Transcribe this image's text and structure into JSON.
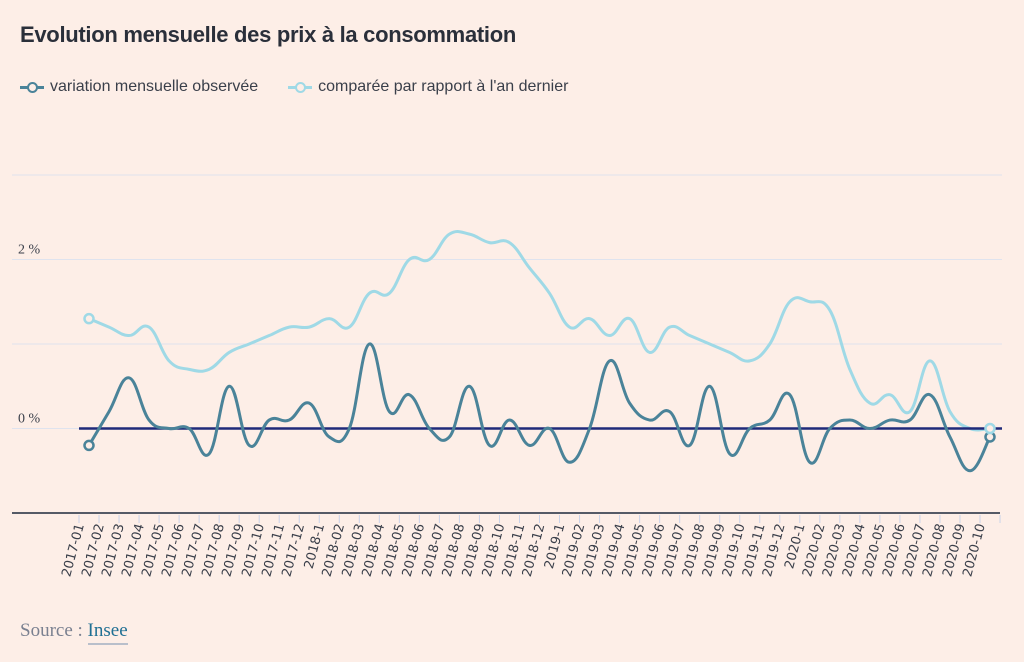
{
  "title": "Evolution mensuelle des prix à la consommation",
  "legend": [
    {
      "label": "variation mensuelle observée",
      "color": "#4a8399"
    },
    {
      "label": "comparée par rapport à l'an dernier",
      "color": "#9fd9e6"
    }
  ],
  "source": {
    "label": "Source :",
    "link": "Insee"
  },
  "colors": {
    "background": "#fdeee7",
    "zero_line": "#1f2a7a",
    "grid": "#dfe3ee",
    "axis": "#555a66",
    "tick": "#c9d3ea"
  },
  "chart_data": {
    "type": "line",
    "title": "Evolution mensuelle des prix à la consommation",
    "xlabel": "",
    "ylabel": "",
    "ylim": [
      -1,
      3
    ],
    "yticks": [
      {
        "value": 2,
        "label": "2 %"
      },
      {
        "value": 0,
        "label": "0 %"
      }
    ],
    "grid": true,
    "legend_position": "top-left",
    "x": [
      "2017-01",
      "2017-02",
      "2017-03",
      "2017-04",
      "2017-05",
      "2017-06",
      "2017-07",
      "2017-08",
      "2017-09",
      "2017-10",
      "2017-11",
      "2017-12",
      "2018-1",
      "2018-02",
      "2018-03",
      "2018-04",
      "2018-05",
      "2018-06",
      "2018-07",
      "2018-08",
      "2018-09",
      "2018-10",
      "2018-11",
      "2018-12",
      "2019-1",
      "2019-02",
      "2019-03",
      "2019-04",
      "2019-05",
      "2019-06",
      "2019-07",
      "2019-08",
      "2019-09",
      "2019-10",
      "2019-11",
      "2019-12",
      "2020-1",
      "2020-02",
      "2020-03",
      "2020-04",
      "2020-05",
      "2020-06",
      "2020-07",
      "2020-08",
      "2020-09",
      "2020-10"
    ],
    "series": [
      {
        "name": "variation mensuelle observée",
        "color": "#4a8399",
        "values": [
          -0.2,
          0.2,
          0.6,
          0.1,
          0.0,
          0.0,
          -0.3,
          0.5,
          -0.2,
          0.1,
          0.1,
          0.3,
          -0.1,
          0.0,
          1.0,
          0.2,
          0.4,
          0.0,
          -0.1,
          0.5,
          -0.2,
          0.1,
          -0.2,
          0.0,
          -0.4,
          0.0,
          0.8,
          0.3,
          0.1,
          0.2,
          -0.2,
          0.5,
          -0.3,
          0.0,
          0.1,
          0.4,
          -0.4,
          0.0,
          0.1,
          0.0,
          0.1,
          0.1,
          0.4,
          -0.1,
          -0.5,
          -0.1
        ]
      },
      {
        "name": "comparée par rapport à l'an dernier",
        "color": "#9fd9e6",
        "values": [
          1.3,
          1.2,
          1.1,
          1.2,
          0.8,
          0.7,
          0.7,
          0.9,
          1.0,
          1.1,
          1.2,
          1.2,
          1.3,
          1.2,
          1.6,
          1.6,
          2.0,
          2.0,
          2.3,
          2.3,
          2.2,
          2.2,
          1.9,
          1.6,
          1.2,
          1.3,
          1.1,
          1.3,
          0.9,
          1.2,
          1.1,
          1.0,
          0.9,
          0.8,
          1.0,
          1.5,
          1.5,
          1.4,
          0.7,
          0.3,
          0.4,
          0.2,
          0.8,
          0.2,
          0.0,
          0.0
        ]
      }
    ]
  }
}
